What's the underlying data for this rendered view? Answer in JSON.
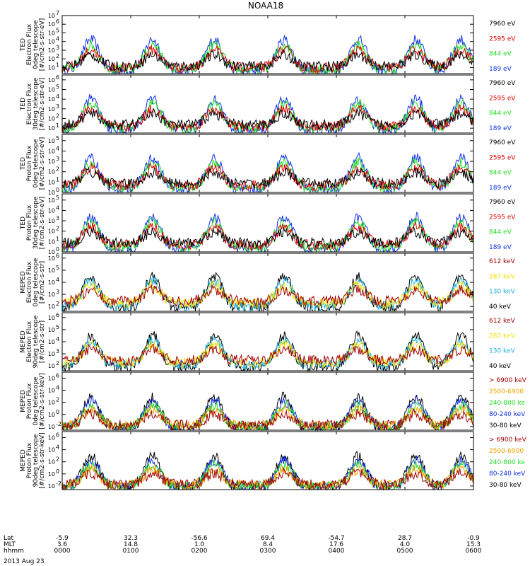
{
  "title": "NOAA18",
  "date_label": "2013 Aug 23",
  "colors": {
    "black": "#000000",
    "red": "#e00000",
    "green": "#22dd22",
    "blue": "#1030e8",
    "yellow": "#f2e000",
    "cyan": "#1ab0e0",
    "darkred": "#a00000",
    "orange": "#f0a000"
  },
  "footer": {
    "labels": [
      "Lat",
      "MLT",
      "hhmm"
    ],
    "columns": [
      {
        "lat": "-5.9",
        "mlt": "3.6",
        "hhmm": "0000"
      },
      {
        "lat": "32.3",
        "mlt": "14.8",
        "hhmm": "0100"
      },
      {
        "lat": "-56.6",
        "mlt": "1.0",
        "hhmm": "0200"
      },
      {
        "lat": "69.4",
        "mlt": "8.4",
        "hhmm": "0300"
      },
      {
        "lat": "-54.7",
        "mlt": "17.6",
        "hhmm": "0400"
      },
      {
        "lat": "28.7",
        "mlt": "4.0",
        "hhmm": "0500"
      },
      {
        "lat": "-0.9",
        "mlt": "15.3",
        "hhmm": "0600"
      }
    ]
  },
  "chart_data": [
    {
      "type": "line",
      "ylabel": [
        "TED",
        "Electron Flux",
        "0deg telescope",
        "[#/cm2-s-str-eV]"
      ],
      "yscale": "log",
      "ticks": [
        {
          "e": 1,
          "label": "10"
        },
        {
          "e": 2,
          "label": "10"
        },
        {
          "e": 3,
          "label": "10"
        },
        {
          "e": 4,
          "label": "10"
        },
        {
          "e": 5,
          "label": "10"
        },
        {
          "e": 6,
          "label": "10"
        },
        {
          "e": 7,
          "label": "10"
        }
      ],
      "ylim_exp": [
        0.3,
        7
      ],
      "legend": [
        {
          "name": "7960 eV",
          "color": "black"
        },
        {
          "name": "2595 eV",
          "color": "red"
        },
        {
          "name": "844 eV",
          "color": "green"
        },
        {
          "name": "189 eV",
          "color": "blue"
        }
      ]
    },
    {
      "type": "line",
      "ylabel": [
        "TED",
        "Electron Flux",
        "30deg telescope",
        "[#/cm2-s-str-eV]"
      ],
      "yscale": "log",
      "ticks": [
        {
          "e": 1,
          "label": "10"
        },
        {
          "e": 2,
          "label": "10"
        },
        {
          "e": 3,
          "label": "10"
        },
        {
          "e": 4,
          "label": "10"
        },
        {
          "e": 5,
          "label": "10"
        },
        {
          "e": 6,
          "label": "10"
        }
      ],
      "ylim_exp": [
        0.5,
        6.5
      ],
      "legend": [
        {
          "name": "7960 eV",
          "color": "black"
        },
        {
          "name": "2595 eV",
          "color": "red"
        },
        {
          "name": "844 eV",
          "color": "green"
        },
        {
          "name": "189 eV",
          "color": "blue"
        }
      ]
    },
    {
      "type": "line",
      "ylabel": [
        "TED",
        "Proton Flux",
        "0deg telescope",
        "[#/cm2-s-str-eV]"
      ],
      "yscale": "log",
      "ticks": [
        {
          "e": 0,
          "label": "10"
        },
        {
          "e": 1,
          "label": "10"
        },
        {
          "e": 2,
          "label": "10"
        },
        {
          "e": 3,
          "label": "10"
        },
        {
          "e": 4,
          "label": "10"
        },
        {
          "e": 5,
          "label": "10"
        }
      ],
      "ylim_exp": [
        0,
        5.6
      ],
      "legend": [
        {
          "name": "7960 eV",
          "color": "black"
        },
        {
          "name": "2595 eV",
          "color": "red"
        },
        {
          "name": "844 eV",
          "color": "green"
        },
        {
          "name": "189 eV",
          "color": "blue"
        }
      ]
    },
    {
      "type": "line",
      "ylabel": [
        "TED",
        "Proton Flux",
        "30deg telescope",
        "[#/cm2-s-str-eV]"
      ],
      "yscale": "log",
      "ticks": [
        {
          "e": 0,
          "label": "10"
        },
        {
          "e": 1,
          "label": "10"
        },
        {
          "e": 2,
          "label": "10"
        },
        {
          "e": 3,
          "label": "10"
        },
        {
          "e": 4,
          "label": "10"
        },
        {
          "e": 5,
          "label": "10"
        }
      ],
      "ylim_exp": [
        0,
        5.6
      ],
      "legend": [
        {
          "name": "7960 eV",
          "color": "black"
        },
        {
          "name": "2595 eV",
          "color": "red"
        },
        {
          "name": "844 eV",
          "color": "green"
        },
        {
          "name": "189 eV",
          "color": "blue"
        }
      ]
    },
    {
      "type": "line",
      "ylabel": [
        "MEPED",
        "Electron Flux",
        "0deg telescope",
        "[#/cm2-s-str]"
      ],
      "yscale": "log",
      "ticks": [
        {
          "e": 2,
          "label": "10"
        },
        {
          "e": 3,
          "label": "10"
        },
        {
          "e": 4,
          "label": "10"
        },
        {
          "e": 5,
          "label": "10"
        },
        {
          "e": 6,
          "label": "10"
        }
      ],
      "ylim_exp": [
        1.6,
        6.4
      ],
      "legend": [
        {
          "name": "612 keV",
          "color": "darkred"
        },
        {
          "name": "287 keV",
          "color": "yellow"
        },
        {
          "name": "130 keV",
          "color": "cyan"
        },
        {
          "name": "40 keV",
          "color": "black"
        }
      ]
    },
    {
      "type": "line",
      "ylabel": [
        "MEPED",
        "Electron Flux",
        "90deg telescope",
        "[#/cm2-s-str]"
      ],
      "yscale": "log",
      "ticks": [
        {
          "e": 2,
          "label": "10"
        },
        {
          "e": 3,
          "label": "10"
        },
        {
          "e": 4,
          "label": "10"
        },
        {
          "e": 5,
          "label": "10"
        },
        {
          "e": 6,
          "label": "10"
        }
      ],
      "ylim_exp": [
        1.6,
        6.4
      ],
      "legend": [
        {
          "name": "612 keV",
          "color": "darkred"
        },
        {
          "name": "287 keV",
          "color": "yellow"
        },
        {
          "name": "130 keV",
          "color": "cyan"
        },
        {
          "name": "40 keV",
          "color": "black"
        }
      ]
    },
    {
      "type": "line",
      "ylabel": [
        "MEPED",
        "Proton Flux",
        "0deg telescope",
        "[#/cm2-s-str-keV]"
      ],
      "yscale": "log",
      "ticks": [
        {
          "e": -2,
          "label": "10"
        },
        {
          "e": 0,
          "label": "10"
        },
        {
          "e": 2,
          "label": "10"
        },
        {
          "e": 4,
          "label": "10"
        },
        {
          "e": 6,
          "label": "10"
        }
      ],
      "ylim_exp": [
        -2.6,
        7
      ],
      "legend": [
        {
          "name": "> 6900 keV",
          "color": "darkred"
        },
        {
          "name": "2500-6900",
          "color": "orange"
        },
        {
          "name": "240-800 ke",
          "color": "green"
        },
        {
          "name": "80-240 keV",
          "color": "blue"
        },
        {
          "name": "30-80 keV",
          "color": "black"
        }
      ]
    },
    {
      "type": "line",
      "ylabel": [
        "MEPED",
        "Proton Flux",
        "90deg telescope",
        "[#/cm2-s-str-keV]"
      ],
      "yscale": "log",
      "ticks": [
        {
          "e": -2,
          "label": "10"
        },
        {
          "e": 0,
          "label": "10"
        },
        {
          "e": 2,
          "label": "10"
        },
        {
          "e": 4,
          "label": "10"
        },
        {
          "e": 6,
          "label": "10"
        }
      ],
      "ylim_exp": [
        -2.6,
        7
      ],
      "legend": [
        {
          "name": "> 6900 keV",
          "color": "darkred"
        },
        {
          "name": "2500-6900",
          "color": "orange"
        },
        {
          "name": "240-800 ke",
          "color": "green"
        },
        {
          "name": "80-240 keV",
          "color": "blue"
        },
        {
          "name": "30-80 keV",
          "color": "black"
        }
      ]
    }
  ]
}
